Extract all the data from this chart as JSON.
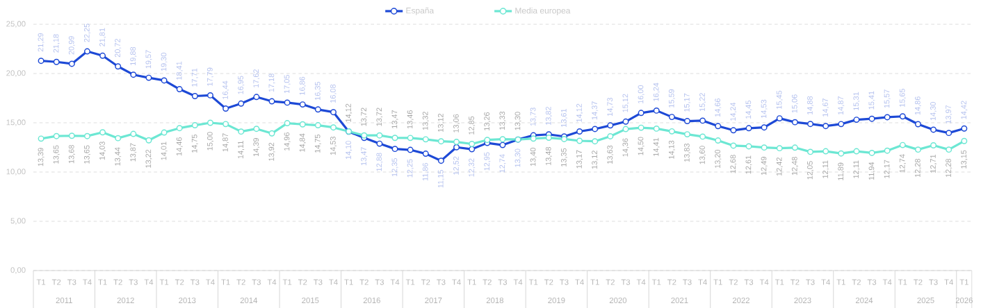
{
  "chart_data": {
    "type": "line",
    "legend": "top",
    "grid": "y",
    "marker": "circle",
    "line_style": "solid",
    "categories": [
      "T1",
      "T2",
      "T3",
      "T4",
      "T1",
      "T2",
      "T3",
      "T4",
      "T1",
      "T2",
      "T3",
      "T4",
      "T1",
      "T2",
      "T3",
      "T4",
      "T1",
      "T2",
      "T3",
      "T4",
      "T1",
      "T2",
      "T3",
      "T4",
      "T1",
      "T2",
      "T3",
      "T4",
      "T1",
      "T2",
      "T3",
      "T4",
      "T1",
      "T2",
      "T3",
      "T4",
      "T1",
      "T2",
      "T3",
      "T4",
      "T1",
      "T2",
      "T3",
      "T4",
      "T1",
      "T2",
      "T3",
      "T4",
      "T1",
      "T2",
      "T3",
      "T4",
      "T1",
      "T2",
      "T3",
      "T4",
      "T1",
      "T2",
      "T3",
      "T4",
      "T1"
    ],
    "annotations": [
      "2011",
      "2012",
      "2013",
      "2014",
      "2015",
      "2016",
      "2017",
      "2018",
      "2019",
      "2020",
      "2021",
      "2022",
      "2023",
      "2024",
      "2025",
      "2026"
    ],
    "ylim": [
      0,
      25
    ],
    "yticks": [
      {
        "value": 0,
        "label": "0,00"
      },
      {
        "value": 5,
        "label": "5,00"
      },
      {
        "value": 10,
        "label": "10,00"
      },
      {
        "value": 15,
        "label": "15,00"
      },
      {
        "value": 20,
        "label": "20,00"
      },
      {
        "value": 25,
        "label": "25,00"
      }
    ],
    "series": [
      {
        "name": "España",
        "color": "#1d49d6",
        "values": [
          21.29,
          21.18,
          20.99,
          22.25,
          21.81,
          20.72,
          19.88,
          19.57,
          19.3,
          18.41,
          17.71,
          17.79,
          16.44,
          16.95,
          17.62,
          17.18,
          17.05,
          16.86,
          16.35,
          16.08,
          14.1,
          13.47,
          12.88,
          12.35,
          12.25,
          11.86,
          11.15,
          12.52,
          12.32,
          12.95,
          12.74,
          13.3,
          13.73,
          13.82,
          13.61,
          14.12,
          14.37,
          14.73,
          15.12,
          16.0,
          16.24,
          15.59,
          15.17,
          15.22,
          14.66,
          14.24,
          14.45,
          14.53,
          15.45,
          15.06,
          14.88,
          14.67,
          14.87,
          15.31,
          15.41,
          15.57,
          15.65,
          14.86,
          14.3,
          13.97,
          14.42
        ],
        "value_labels": [
          "21,29",
          "21,18",
          "20,99",
          "22,25",
          "21,81",
          "20,72",
          "19,88",
          "19,57",
          "19,30",
          "18,41",
          "17,71",
          "17,79",
          "16,44",
          "16,95",
          "17,62",
          "17,18",
          "17,05",
          "16,86",
          "16,35",
          "16,08",
          "14,10",
          "13,47",
          "12,88",
          "12,35",
          "12,25",
          "11,86",
          "11,15",
          "12,52",
          "12,32",
          "12,95",
          "12,74",
          "13,30",
          "13,73",
          "13,82",
          "13,61",
          "14,12",
          "14,37",
          "14,73",
          "15,12",
          "16,00",
          "16,24",
          "15,59",
          "15,17",
          "15,22",
          "14,66",
          "14,24",
          "14,45",
          "14,53",
          "15,45",
          "15,06",
          "14,88",
          "14,67",
          "14,87",
          "15,31",
          "15,41",
          "15,57",
          "15,65",
          "14,86",
          "14,30",
          "13,97",
          "14,42"
        ]
      },
      {
        "name": "Media europea",
        "color": "#6ce7d3",
        "values": [
          13.39,
          13.65,
          13.68,
          13.65,
          14.03,
          13.44,
          13.87,
          13.22,
          14.01,
          14.46,
          14.75,
          15.0,
          14.87,
          14.11,
          14.39,
          13.92,
          14.96,
          14.84,
          14.75,
          14.53,
          14.12,
          13.72,
          13.72,
          13.47,
          13.46,
          13.32,
          13.12,
          13.06,
          12.85,
          13.26,
          13.33,
          13.3,
          13.4,
          13.48,
          13.35,
          13.17,
          13.12,
          13.63,
          14.36,
          14.5,
          14.41,
          14.13,
          13.83,
          13.6,
          13.2,
          12.68,
          12.61,
          12.49,
          12.42,
          12.48,
          12.05,
          12.11,
          11.89,
          12.11,
          11.94,
          12.17,
          12.74,
          12.28,
          12.71,
          12.28,
          13.15
        ],
        "value_labels": [
          "13,39",
          "13,65",
          "13,68",
          "13,65",
          "14,03",
          "13,44",
          "13,87",
          "13,22",
          "14,01",
          "14,46",
          "14,75",
          "15,00",
          "14,87",
          "14,11",
          "14,39",
          "13,92",
          "14,96",
          "14,84",
          "14,75",
          "14,53",
          "14,12",
          "13,72",
          "13,72",
          "13,47",
          "13,46",
          "13,32",
          "13,12",
          "13,06",
          "12,85",
          "13,26",
          "13,33",
          "13,30",
          "13,40",
          "13,48",
          "13,35",
          "13,17",
          "13,12",
          "13,63",
          "14,36",
          "14,50",
          "14,41",
          "14,13",
          "13,83",
          "13,60",
          "13,20",
          "12,68",
          "12,61",
          "12,49",
          "12,42",
          "12,48",
          "12,05",
          "12,11",
          "11,89",
          "12,11",
          "11,94",
          "12,17",
          "12,74",
          "12,28",
          "12,71",
          "12,28",
          "13,15"
        ]
      }
    ]
  }
}
